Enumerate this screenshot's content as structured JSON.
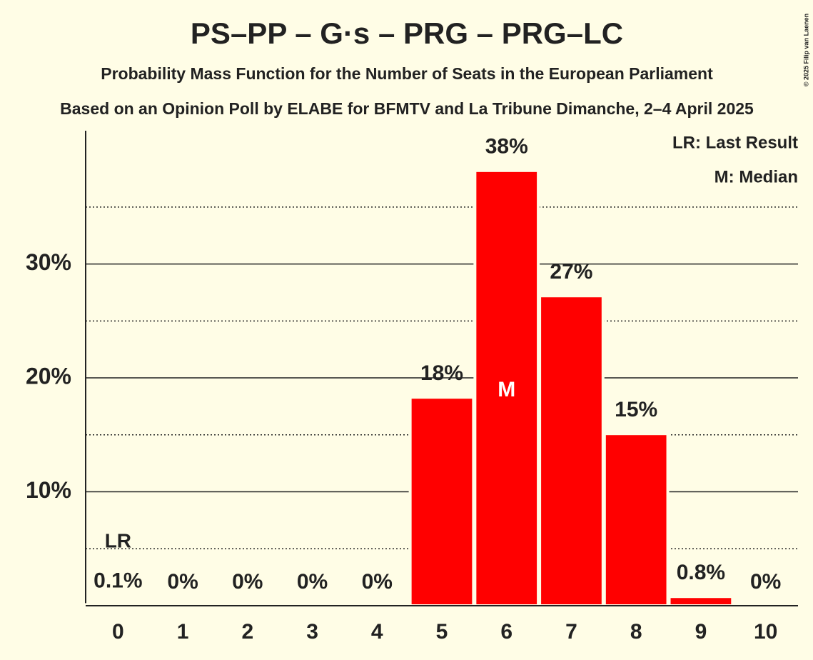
{
  "chart_data": {
    "type": "bar",
    "title": "PS–PP – G·s – PRG – PRG–LC",
    "subtitle": "Probability Mass Function for the Number of Seats in the European Parliament",
    "source": "Based on an Opinion Poll by ELABE for BFMTV and La Tribune Dimanche, 2–4 April 2025",
    "copyright": "© 2025 Filip van Laenen",
    "categories": [
      "0",
      "1",
      "2",
      "3",
      "4",
      "5",
      "6",
      "7",
      "8",
      "9",
      "10"
    ],
    "values": [
      0.1,
      0,
      0,
      0,
      0,
      18.3,
      38.2,
      27.2,
      15.1,
      0.8,
      0
    ],
    "value_labels": [
      "0.1%",
      "0%",
      "0%",
      "0%",
      "0%",
      "18%",
      "38%",
      "27%",
      "15%",
      "0.8%",
      "0%"
    ],
    "color": "#ff0000",
    "ylim": [
      0,
      41.7
    ],
    "yticks": [
      {
        "value": 10,
        "label": "10%"
      },
      {
        "value": 20,
        "label": "20%"
      },
      {
        "value": 30,
        "label": "30%"
      }
    ],
    "minor_yticks": [
      5,
      15,
      25,
      35
    ],
    "grid": true,
    "last_result": {
      "index": 0,
      "marker": "LR",
      "legend": "LR: Last Result"
    },
    "median": {
      "index": 6,
      "marker": "M",
      "legend": "M: Median"
    }
  }
}
